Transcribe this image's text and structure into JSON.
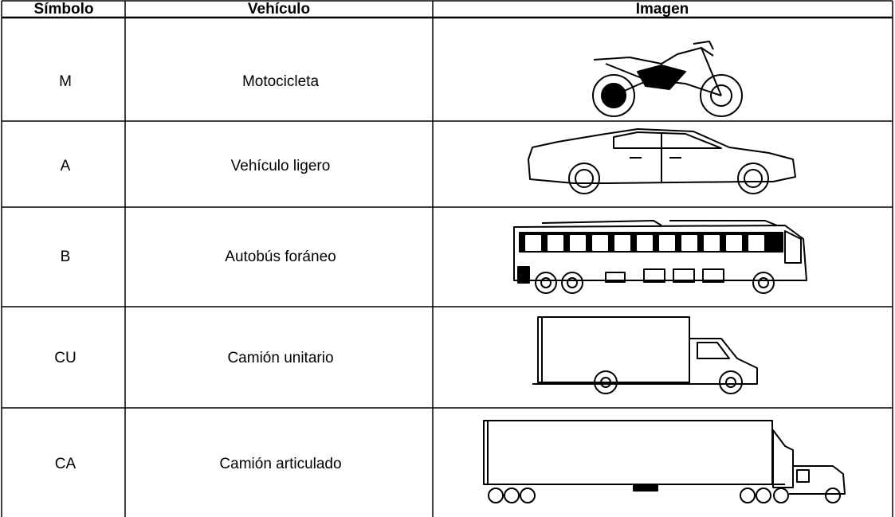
{
  "table": {
    "header": [
      "Símbolo",
      "Vehículo",
      "Imagen"
    ],
    "rows": [
      [
        "M",
        "Motocicleta"
      ],
      [
        "A",
        "Vehículo ligero"
      ],
      [
        "B",
        "Autobús foráneo"
      ],
      [
        "CU",
        "Camión unitario"
      ],
      [
        "CA",
        "Camión articulado"
      ]
    ]
  }
}
